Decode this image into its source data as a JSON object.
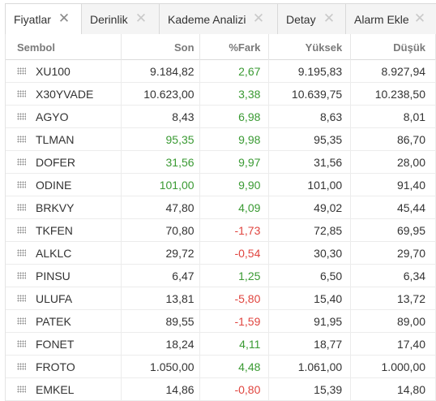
{
  "tabs": [
    {
      "label": "Fiyatlar",
      "close": "✕",
      "active": true
    },
    {
      "label": "Derinlik",
      "close": "✕",
      "active": false
    },
    {
      "label": "Kademe Analizi",
      "close": "✕",
      "active": false
    },
    {
      "label": "Detay",
      "close": "✕",
      "active": false
    },
    {
      "label": "Alarm Ekle",
      "close": "✕",
      "active": false
    }
  ],
  "columns": {
    "symbol": "Sembol",
    "last": "Son",
    "change": "%Fark",
    "high": "Yüksek",
    "low": "Düşük"
  },
  "colors": {
    "positive": "#3a9a33",
    "negative": "#e0453f"
  },
  "rows": [
    {
      "symbol": "XU100",
      "last": "9.184,82",
      "change": "2,67",
      "high": "9.195,83",
      "low": "8.927,94",
      "last_highlight": false,
      "direction": "up"
    },
    {
      "symbol": "X30YVADE",
      "last": "10.623,00",
      "change": "3,38",
      "high": "10.639,75",
      "low": "10.238,50",
      "last_highlight": false,
      "direction": "up"
    },
    {
      "symbol": "AGYO",
      "last": "8,43",
      "change": "6,98",
      "high": "8,63",
      "low": "8,01",
      "last_highlight": false,
      "direction": "up"
    },
    {
      "symbol": "TLMAN",
      "last": "95,35",
      "change": "9,98",
      "high": "95,35",
      "low": "86,70",
      "last_highlight": true,
      "direction": "up"
    },
    {
      "symbol": "DOFER",
      "last": "31,56",
      "change": "9,97",
      "high": "31,56",
      "low": "28,00",
      "last_highlight": true,
      "direction": "up"
    },
    {
      "symbol": "ODINE",
      "last": "101,00",
      "change": "9,90",
      "high": "101,00",
      "low": "91,40",
      "last_highlight": true,
      "direction": "up"
    },
    {
      "symbol": "BRKVY",
      "last": "47,80",
      "change": "4,09",
      "high": "49,02",
      "low": "45,44",
      "last_highlight": false,
      "direction": "up"
    },
    {
      "symbol": "TKFEN",
      "last": "70,80",
      "change": "-1,73",
      "high": "72,85",
      "low": "69,95",
      "last_highlight": false,
      "direction": "down"
    },
    {
      "symbol": "ALKLC",
      "last": "29,72",
      "change": "-0,54",
      "high": "30,30",
      "low": "29,70",
      "last_highlight": false,
      "direction": "down"
    },
    {
      "symbol": "PINSU",
      "last": "6,47",
      "change": "1,25",
      "high": "6,50",
      "low": "6,34",
      "last_highlight": false,
      "direction": "up"
    },
    {
      "symbol": "ULUFA",
      "last": "13,81",
      "change": "-5,80",
      "high": "15,40",
      "low": "13,72",
      "last_highlight": false,
      "direction": "down"
    },
    {
      "symbol": "PATEK",
      "last": "89,55",
      "change": "-1,59",
      "high": "91,95",
      "low": "89,00",
      "last_highlight": false,
      "direction": "down"
    },
    {
      "symbol": "FONET",
      "last": "18,24",
      "change": "4,11",
      "high": "18,77",
      "low": "17,40",
      "last_highlight": false,
      "direction": "up"
    },
    {
      "symbol": "FROTO",
      "last": "1.050,00",
      "change": "4,48",
      "high": "1.061,00",
      "low": "1.000,00",
      "last_highlight": false,
      "direction": "up"
    },
    {
      "symbol": "EMKEL",
      "last": "14,86",
      "change": "-0,80",
      "high": "15,39",
      "low": "14,80",
      "last_highlight": false,
      "direction": "down"
    }
  ]
}
